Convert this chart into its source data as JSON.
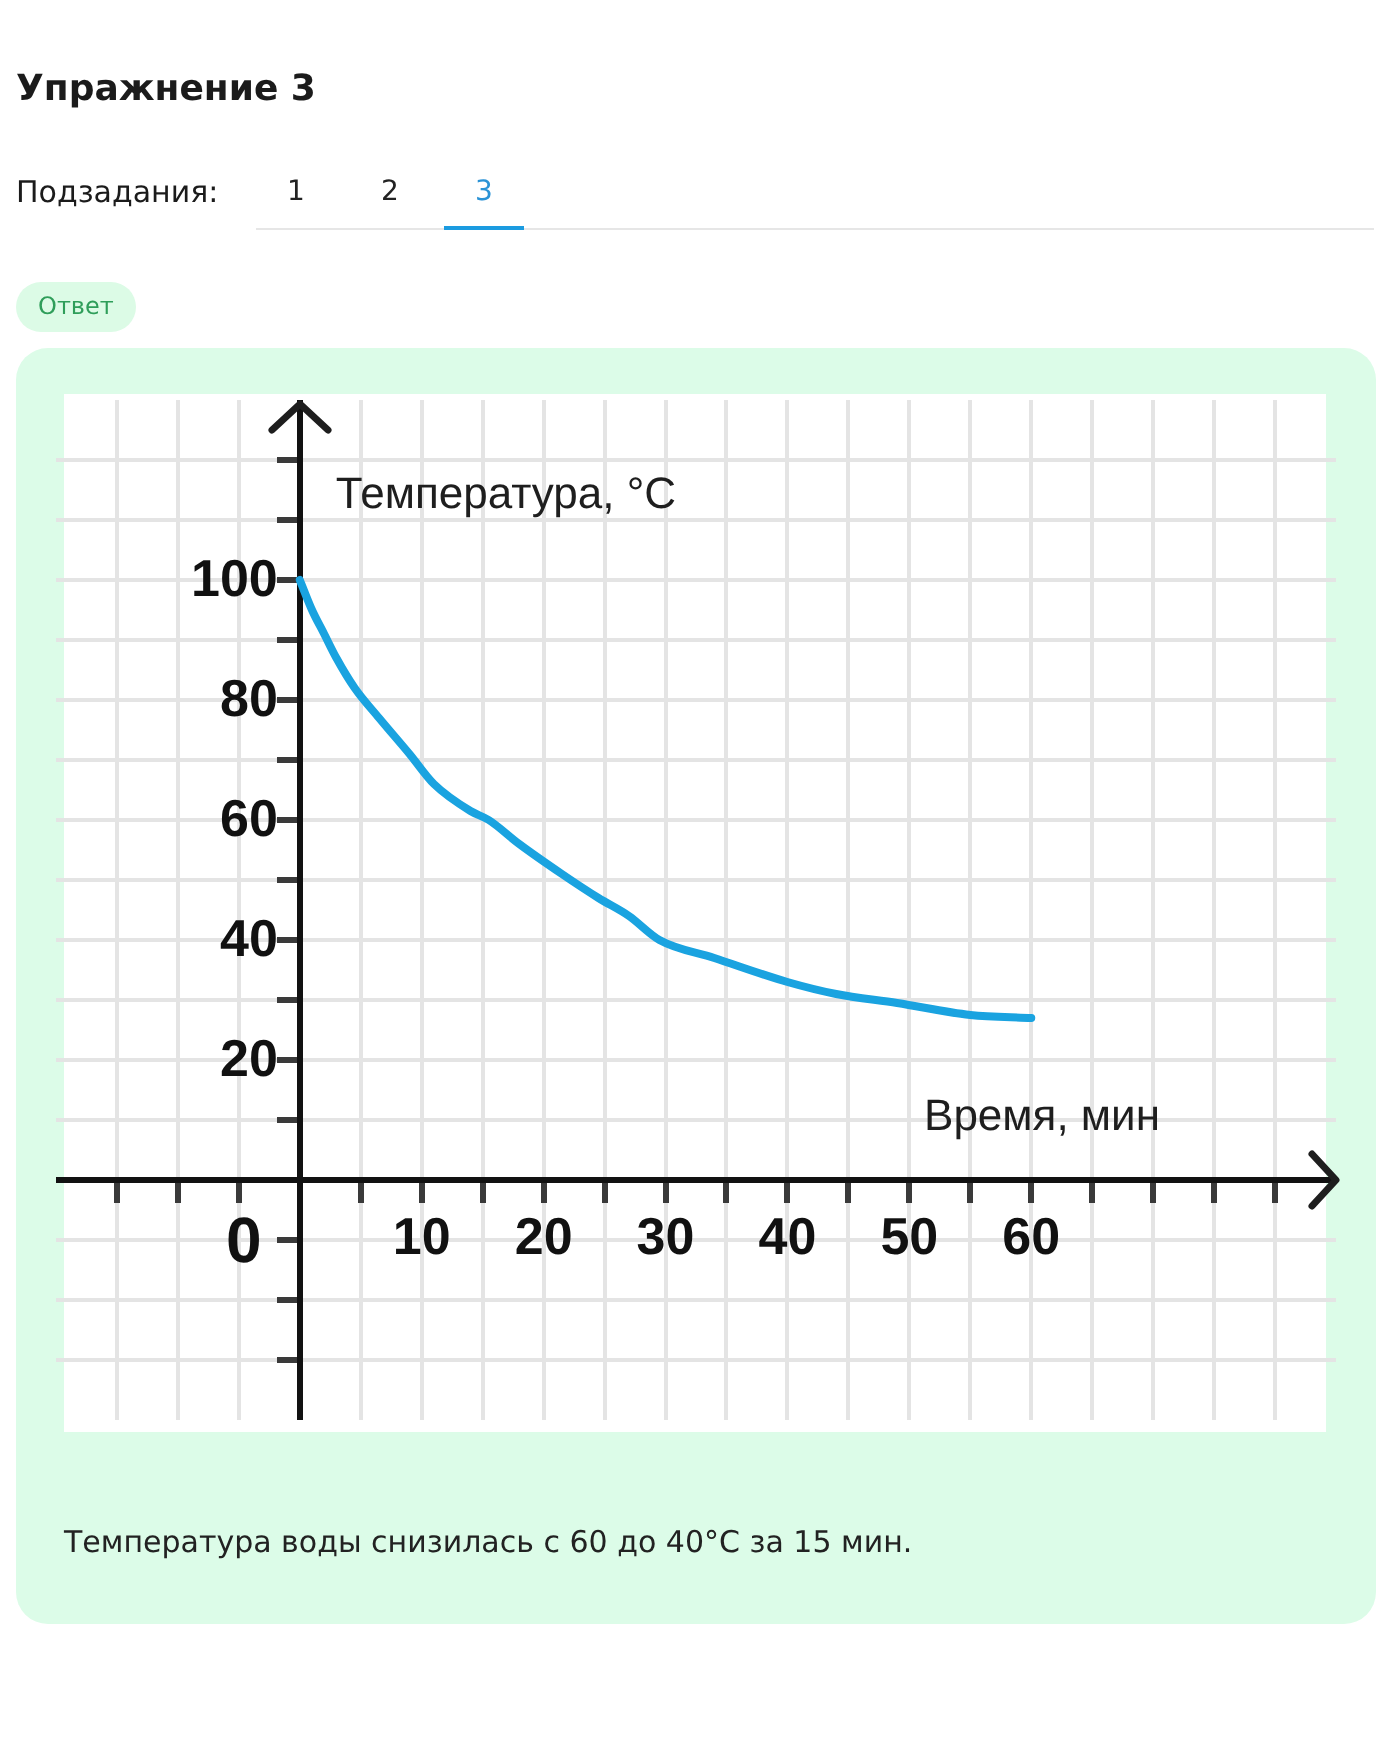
{
  "chart_data": {
    "type": "line",
    "title": "Упражнение 3",
    "xlabel": "Время, мин",
    "ylabel": "Температура, °C",
    "x": [
      0,
      1,
      2,
      3,
      4.5,
      6.5,
      9,
      11,
      14,
      15.5,
      18,
      21.5,
      24.5,
      27,
      29.5,
      34,
      40,
      44,
      49,
      55,
      60
    ],
    "series": [
      {
        "color": "#1aa3e0",
        "values": [
          100,
          95,
          91,
          87,
          82,
          77,
          71,
          66,
          61.5,
          60,
          56,
          51,
          47,
          44,
          40,
          37,
          33,
          31,
          29.5,
          27.5,
          27
        ]
      }
    ],
    "xlim": [
      -20,
      85
    ],
    "ylim": [
      -40,
      130
    ],
    "xticks": [
      {
        "value": -15,
        "label": null
      },
      {
        "value": -10,
        "label": null
      },
      {
        "value": -5,
        "label": null
      },
      {
        "value": 0,
        "label": null
      },
      {
        "value": 5,
        "label": null
      },
      10,
      {
        "value": 15,
        "label": null
      },
      20,
      {
        "value": 25,
        "label": null
      },
      30,
      {
        "value": 35,
        "label": null
      },
      40,
      {
        "value": 45,
        "label": null
      },
      50,
      {
        "value": 55,
        "label": null
      },
      60,
      {
        "value": 65,
        "label": null
      },
      {
        "value": 70,
        "label": null
      },
      {
        "value": 75,
        "label": null
      },
      {
        "value": 80,
        "label": null
      }
    ],
    "yticks": [
      {
        "value": -30,
        "label": null
      },
      {
        "value": -20,
        "label": null
      },
      {
        "value": -10,
        "label": null
      },
      {
        "value": 0,
        "label": null
      },
      {
        "value": 10,
        "label": null
      },
      20,
      {
        "value": 30,
        "label": null
      },
      40,
      {
        "value": 50,
        "label": null
      },
      60,
      {
        "value": 70,
        "label": null
      },
      80,
      {
        "value": 90,
        "label": null
      },
      100,
      {
        "value": 110,
        "label": null
      },
      {
        "value": 120,
        "label": null
      }
    ],
    "grid": true,
    "marker": "none",
    "annotations": [
      "0",
      "Подзадания:",
      "1",
      "2",
      "3",
      "Ответ",
      "Температура воды снизилась с 60 до 40°C за 15 мин."
    ]
  }
}
